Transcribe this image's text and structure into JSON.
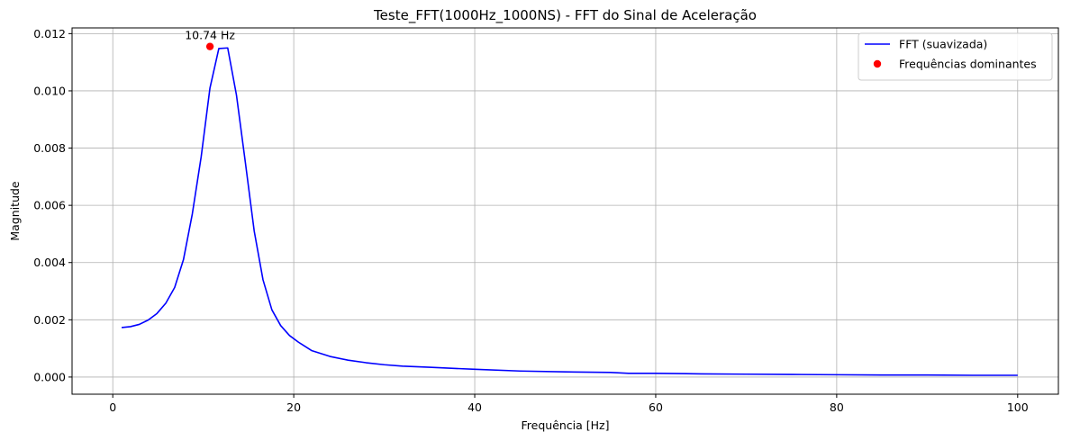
{
  "chart_data": {
    "type": "line",
    "title": "Teste_FFT(1000Hz_1000NS) - FFT do Sinal de Aceleração",
    "xlabel": "Frequência [Hz]",
    "ylabel": "Magnitude",
    "xlim": [
      -4.5,
      104.5
    ],
    "ylim": [
      -0.0006,
      0.0122
    ],
    "xticks": [
      0,
      20,
      40,
      60,
      80,
      100
    ],
    "yticks": [
      0.0,
      0.002,
      0.004,
      0.006,
      0.008,
      0.01,
      0.012
    ],
    "xtick_labels": [
      "0",
      "20",
      "40",
      "60",
      "80",
      "100"
    ],
    "ytick_labels": [
      "0.000",
      "0.002",
      "0.004",
      "0.006",
      "0.008",
      "0.010",
      "0.012"
    ],
    "grid": true,
    "legend_position": "top-right",
    "series": [
      {
        "name": "FFT (suavizada)",
        "color": "#0000ff",
        "x": [
          0.98,
          1.95,
          2.93,
          3.91,
          4.88,
          5.86,
          6.84,
          7.81,
          8.79,
          9.77,
          10.74,
          11.72,
          12.7,
          13.67,
          14.65,
          15.63,
          16.6,
          17.58,
          18.55,
          19.53,
          20.51,
          22.0,
          24.0,
          26.0,
          28.0,
          30.0,
          32.0,
          35.0,
          40.0,
          45.0,
          50.0,
          55.0,
          57.0,
          60.0,
          65.0,
          70.0,
          75.0,
          80.0,
          85.0,
          90.0,
          95.0,
          100.0
        ],
        "y": [
          0.00173,
          0.00176,
          0.00184,
          0.00199,
          0.00222,
          0.00258,
          0.00313,
          0.0041,
          0.0057,
          0.0077,
          0.0101,
          0.01148,
          0.0115,
          0.00985,
          0.0075,
          0.0051,
          0.0034,
          0.00235,
          0.0018,
          0.00145,
          0.00122,
          0.00092,
          0.00072,
          0.00059,
          0.0005,
          0.00043,
          0.00038,
          0.00034,
          0.00027,
          0.00021,
          0.00018,
          0.00016,
          0.00013,
          0.00013,
          0.00011,
          0.0001,
          9e-05,
          8e-05,
          7e-05,
          7e-05,
          6e-05,
          6e-05
        ]
      },
      {
        "name": "Frequências dominantes",
        "color": "#ff0000",
        "marker": "circle",
        "x": [
          10.74
        ],
        "y": [
          0.01155
        ]
      }
    ],
    "annotations": [
      {
        "text": "10.74 Hz",
        "x": 10.74,
        "y": 0.01155
      }
    ]
  }
}
